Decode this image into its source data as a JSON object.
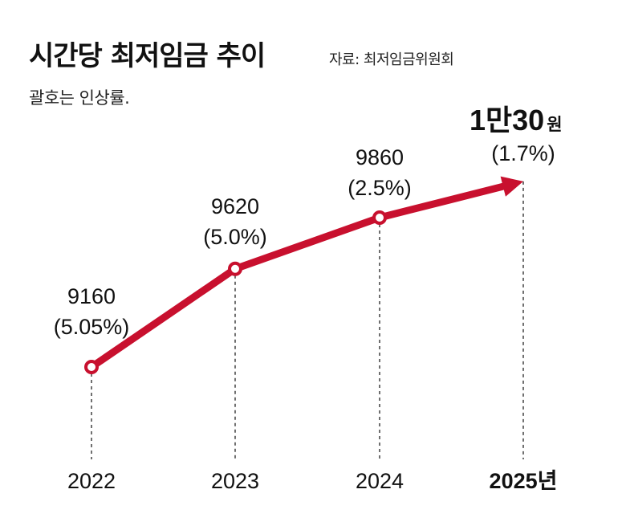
{
  "header": {
    "title": "시간당 최저임금 추이",
    "source": "자료: 최저임금위원회",
    "note": "괄호는 인상률."
  },
  "colors": {
    "line": "#c8102e",
    "text": "#111111"
  },
  "chart_data": {
    "type": "line",
    "title": "시간당 최저임금 추이",
    "xlabel": "",
    "ylabel": "",
    "categories": [
      "2022",
      "2023",
      "2024",
      "2025년"
    ],
    "values": [
      9160,
      9620,
      9860,
      10030
    ],
    "value_labels": [
      "9160",
      "9620",
      "9860",
      "1만30"
    ],
    "last_value_unit": "원",
    "rate_labels": [
      "(5.05%)",
      "(5.0%)",
      "(2.5%)",
      "(1.7%)"
    ],
    "rates_pct": [
      5.05,
      5.0,
      2.5,
      1.7
    ],
    "ylim": [
      9000,
      10100
    ],
    "grid": false,
    "legend": "none"
  }
}
